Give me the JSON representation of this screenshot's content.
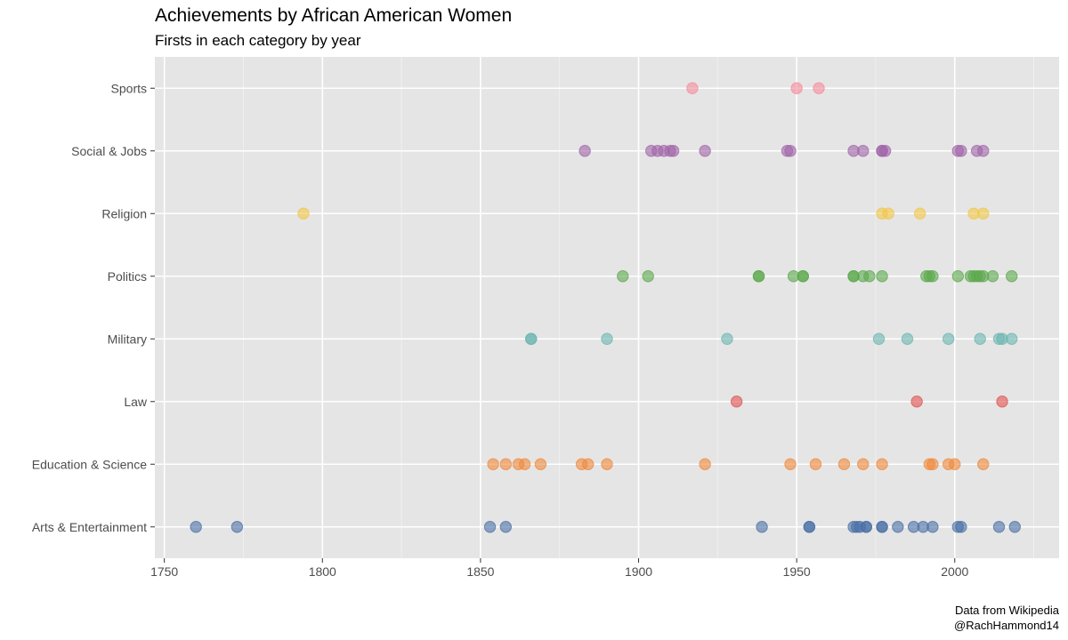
{
  "chart_data": {
    "type": "scatter",
    "title": "Achievements by African American Women",
    "subtitle": "Firsts in each category by year",
    "xlabel": "",
    "ylabel": "",
    "xlim": [
      1747,
      2033
    ],
    "x_ticks": [
      1750,
      1800,
      1850,
      1900,
      1950,
      2000
    ],
    "categories": [
      "Arts & Entertainment",
      "Education & Science",
      "Law",
      "Military",
      "Politics",
      "Religion",
      "Social & Jobs",
      "Sports"
    ],
    "grid": true,
    "legend": "none",
    "series": [
      {
        "category": "Arts & Entertainment",
        "color": "#4a6fa5",
        "x": [
          1760,
          1773,
          1853,
          1858,
          1939,
          1954,
          1954,
          1968,
          1969,
          1970,
          1972,
          1972,
          1977,
          1977,
          1982,
          1987,
          1990,
          1993,
          2001,
          2002,
          2014,
          2019
        ]
      },
      {
        "category": "Education & Science",
        "color": "#f0883a",
        "x": [
          1854,
          1858,
          1862,
          1864,
          1869,
          1882,
          1884,
          1890,
          1921,
          1948,
          1956,
          1965,
          1971,
          1977,
          1992,
          1993,
          1998,
          2000,
          2009
        ]
      },
      {
        "category": "Law",
        "color": "#e0504f",
        "x": [
          1931,
          1988,
          2015
        ]
      },
      {
        "category": "Military",
        "color": "#6bb5b0",
        "x": [
          1866,
          1866,
          1890,
          1928,
          1976,
          1985,
          1998,
          2008,
          2014,
          2015,
          2018
        ]
      },
      {
        "category": "Politics",
        "color": "#5ba84c",
        "x": [
          1895,
          1903,
          1938,
          1938,
          1949,
          1952,
          1952,
          1968,
          1968,
          1971,
          1973,
          1977,
          1991,
          1992,
          1993,
          2001,
          2005,
          2006,
          2007,
          2008,
          2009,
          2012,
          2018
        ]
      },
      {
        "category": "Religion",
        "color": "#f2c744",
        "x": [
          1794,
          1977,
          1979,
          1989,
          2006,
          2009
        ]
      },
      {
        "category": "Social & Jobs",
        "color": "#a064a8",
        "x": [
          1883,
          1904,
          1906,
          1908,
          1910,
          1911,
          1921,
          1947,
          1948,
          1968,
          1971,
          1977,
          1977,
          1978,
          2001,
          2002,
          2007,
          2009
        ]
      },
      {
        "category": "Sports",
        "color": "#f58a9a",
        "x": [
          1917,
          1950,
          1957
        ]
      }
    ]
  },
  "caption": {
    "line1": "Data from Wikipedia",
    "line2": "@RachHammond14"
  }
}
